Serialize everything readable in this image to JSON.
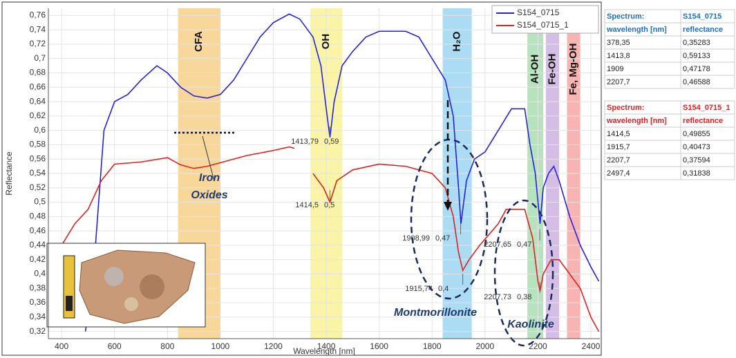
{
  "chart_data": {
    "type": "line",
    "x_label": "Wavelength [nm]",
    "y_label": "Reflectance",
    "xlim": [
      350,
      2434
    ],
    "ylim": [
      0.31,
      0.77
    ],
    "xticks": [
      400,
      600,
      800,
      1000,
      1200,
      1400,
      1600,
      1800,
      2000,
      2200,
      2400
    ],
    "yticks": [
      {
        "value": 0.32,
        "label": "0,32"
      },
      {
        "value": 0.34,
        "label": "0,34"
      },
      {
        "value": 0.36,
        "label": "0,36"
      },
      {
        "value": 0.38,
        "label": "0,38"
      },
      {
        "value": 0.4,
        "label": "0,4"
      },
      {
        "value": 0.42,
        "label": "0,42"
      },
      {
        "value": 0.44,
        "label": "0,44"
      },
      {
        "value": 0.46,
        "label": "0,46"
      },
      {
        "value": 0.48,
        "label": "0,48"
      },
      {
        "value": 0.5,
        "label": "0,5"
      },
      {
        "value": 0.52,
        "label": "0,52"
      },
      {
        "value": 0.54,
        "label": "0,54"
      },
      {
        "value": 0.56,
        "label": "0,56"
      },
      {
        "value": 0.58,
        "label": "0,58"
      },
      {
        "value": 0.6,
        "label": "0,6"
      },
      {
        "value": 0.62,
        "label": "0,62"
      },
      {
        "value": 0.64,
        "label": "0,64"
      },
      {
        "value": 0.66,
        "label": "0,66"
      },
      {
        "value": 0.68,
        "label": "0,68"
      },
      {
        "value": 0.7,
        "label": "0,7"
      },
      {
        "value": 0.72,
        "label": "0,72"
      },
      {
        "value": 0.74,
        "label": "0,74"
      },
      {
        "value": 0.76,
        "label": "0,76"
      }
    ],
    "grid": true,
    "legend": "upper right",
    "series": [
      {
        "name": "S154_0715",
        "color": "#2222dd",
        "x": [
          490,
          520,
          560,
          600,
          650,
          700,
          760,
          800,
          850,
          900,
          950,
          1000,
          1050,
          1100,
          1150,
          1200,
          1260,
          1300,
          1350,
          1380,
          1400,
          1414,
          1430,
          1460,
          1500,
          1550,
          1600,
          1700,
          1750,
          1800,
          1850,
          1880,
          1900,
          1909,
          1930,
          1960,
          2000,
          2050,
          2100,
          2150,
          2170,
          2190,
          2208,
          2220,
          2240,
          2260,
          2280,
          2320,
          2360,
          2400,
          2430
        ],
        "values": [
          0.32,
          0.4,
          0.6,
          0.64,
          0.65,
          0.67,
          0.69,
          0.68,
          0.66,
          0.648,
          0.645,
          0.65,
          0.67,
          0.7,
          0.73,
          0.75,
          0.762,
          0.755,
          0.73,
          0.69,
          0.63,
          0.59,
          0.64,
          0.69,
          0.71,
          0.73,
          0.738,
          0.738,
          0.73,
          0.7,
          0.67,
          0.62,
          0.52,
          0.47,
          0.53,
          0.56,
          0.57,
          0.6,
          0.63,
          0.63,
          0.58,
          0.54,
          0.47,
          0.52,
          0.54,
          0.55,
          0.53,
          0.48,
          0.44,
          0.41,
          0.39
        ]
      },
      {
        "name": "S154_0715_1",
        "color": "#e02020",
        "x": [
          350,
          400,
          450,
          500,
          550,
          600,
          700,
          800,
          850,
          900,
          950,
          1000,
          1100,
          1200,
          1260,
          1280,
          1320,
          1350,
          1390,
          1414,
          1440,
          1500,
          1600,
          1700,
          1800,
          1850,
          1880,
          1900,
          1916,
          1940,
          1980,
          2050,
          2080,
          2150,
          2180,
          2200,
          2208,
          2220,
          2250,
          2280,
          2320,
          2360,
          2400,
          2430
        ],
        "values": [
          0.38,
          0.44,
          0.47,
          0.49,
          0.53,
          0.553,
          0.556,
          0.562,
          0.552,
          0.547,
          0.55,
          0.555,
          0.565,
          0.572,
          0.577,
          0.575,
          null,
          0.54,
          0.52,
          0.5,
          0.53,
          0.545,
          0.553,
          0.55,
          0.54,
          0.52,
          0.48,
          0.43,
          0.405,
          0.42,
          0.44,
          0.47,
          0.49,
          0.49,
          0.45,
          0.39,
          0.376,
          0.4,
          0.42,
          0.42,
          0.4,
          0.38,
          0.34,
          0.32
        ]
      }
    ],
    "bands": [
      {
        "label": "CFA",
        "from": 840,
        "to": 1000,
        "color": "#f5c97a"
      },
      {
        "label": "OH",
        "from": 1340,
        "to": 1460,
        "color": "#f7f08a"
      },
      {
        "label": "H₂O",
        "from": 1840,
        "to": 1950,
        "color": "#8fd0f0"
      },
      {
        "label": "Al-OH",
        "from": 2160,
        "to": 2220,
        "color": "#9ed8a8"
      },
      {
        "label": "Fe-OH",
        "from": 2230,
        "to": 2280,
        "color": "#c6a8dc"
      },
      {
        "label": "Fe, Mg-OH",
        "from": 2310,
        "to": 2360,
        "color": "#f59a9a"
      }
    ],
    "point_labels": [
      [
        "1413,79",
        "0,59"
      ],
      [
        "1414,5",
        "0,5"
      ],
      [
        "1908,99",
        "0,47"
      ],
      [
        "1915,74",
        "0,4"
      ],
      [
        "2207,65",
        "0,47"
      ],
      [
        "2207,73",
        "0,38"
      ]
    ],
    "annotations": [
      "Iron",
      "Oxides",
      "Montmorillonite",
      "Kaolinite"
    ]
  },
  "tables": [
    {
      "color": "#1f6fbf",
      "rows": [
        [
          "Spectrum:",
          "S154_0715"
        ],
        [
          "wavelength [nm]",
          "reflectance"
        ],
        [
          "378,35",
          "0,35283"
        ],
        [
          "1413,8",
          "0,59133"
        ],
        [
          "1909",
          "0,47178"
        ],
        [
          "2207,7",
          "0,46588"
        ]
      ]
    },
    {
      "color": "#e02020",
      "rows": [
        [
          "Spectrum:",
          "S154_0715_1"
        ],
        [
          "wavelength [nm]",
          "reflectance"
        ],
        [
          "1414,5",
          "0,49855"
        ],
        [
          "1915,7",
          "0,40473"
        ],
        [
          "2207,7",
          "0,37594"
        ],
        [
          "2497,4",
          "0,31838"
        ]
      ]
    }
  ]
}
